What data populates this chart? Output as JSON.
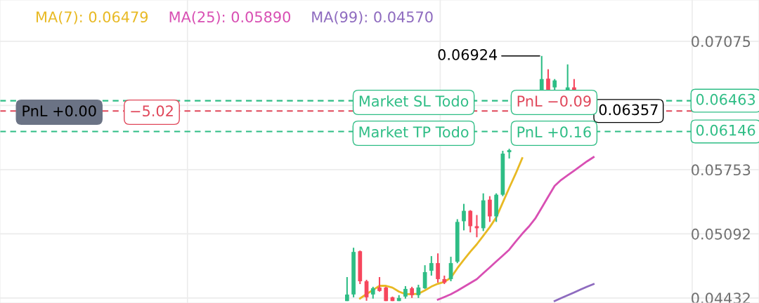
{
  "chart_data": {
    "type": "candlestick",
    "categories": [
      null,
      null,
      null,
      null,
      null,
      null,
      null,
      null,
      null,
      null,
      null,
      null,
      null,
      null,
      null,
      null,
      null,
      null,
      null,
      null,
      null,
      null,
      null,
      null,
      null,
      null,
      null,
      null,
      null,
      null,
      null,
      null,
      null,
      null,
      null,
      null,
      null,
      null,
      null,
      null,
      null,
      null,
      null,
      null,
      null,
      null,
      null,
      null,
      null,
      null,
      null,
      null,
      null,
      null,
      null,
      null,
      null,
      null,
      null,
      null,
      null,
      null,
      null,
      null,
      null,
      null,
      null,
      null,
      null,
      null,
      null,
      null,
      null,
      null,
      null,
      null,
      null,
      null,
      null,
      null,
      null,
      null,
      null,
      null,
      null,
      null,
      null,
      null,
      null,
      null,
      null,
      null,
      null,
      null,
      null,
      null,
      null,
      null,
      null,
      null,
      null,
      null,
      null,
      null,
      null,
      null,
      null,
      null,
      null,
      null,
      null,
      null,
      null,
      null,
      null,
      null,
      null
    ],
    "ohlc": [
      null,
      null,
      null,
      null,
      null,
      null,
      null,
      null,
      null,
      null,
      null,
      null,
      null,
      null,
      null,
      null,
      null,
      null,
      null,
      null,
      null,
      null,
      null,
      null,
      null,
      null,
      null,
      null,
      null,
      null,
      null,
      null,
      null,
      null,
      null,
      null,
      null,
      null,
      null,
      null,
      null,
      null,
      null,
      null,
      null,
      null,
      null,
      null,
      null,
      null,
      null,
      null,
      null,
      [
        0.044,
        0.04647,
        0.044,
        0.04467
      ],
      [
        0.04468,
        0.04949,
        0.04439,
        0.04906
      ],
      [
        0.04913,
        0.0492,
        0.04575,
        0.04604
      ],
      [
        0.04604,
        0.04619,
        0.04403,
        0.04439
      ],
      [
        0.04468,
        0.04547,
        0.04425,
        0.04532
      ],
      [
        0.0454,
        0.04647,
        0.04497,
        0.04504
      ],
      [
        0.0454,
        0.04547,
        0.044,
        0.044
      ],
      [
        0.04439,
        0.04446,
        0.044,
        0.044
      ],
      [
        0.044,
        0.04461,
        0.044,
        0.04432
      ],
      [
        0.04446,
        0.04554,
        0.04425,
        0.04525
      ],
      [
        0.04532,
        0.04547,
        0.04432,
        0.04461
      ],
      [
        0.04461,
        0.04568,
        0.04432,
        0.0454
      ],
      [
        0.04532,
        0.04769,
        0.04525,
        0.04698
      ],
      [
        0.04712,
        0.04863,
        0.04662,
        0.04791
      ],
      [
        0.04791,
        0.04891,
        0.0459,
        0.04626
      ],
      [
        0.04626,
        0.04662,
        0.04575,
        0.0459
      ],
      [
        0.04626,
        0.04856,
        0.04604,
        0.04791
      ],
      [
        0.04805,
        0.05243,
        0.0479,
        0.05215
      ],
      [
        0.05222,
        0.05401,
        0.05128,
        0.05329
      ],
      [
        0.05329,
        0.05336,
        0.05107,
        0.05171
      ],
      [
        0.05171,
        0.05286,
        0.05057,
        0.0515
      ],
      [
        0.0515,
        0.05509,
        0.05121,
        0.05437
      ],
      [
        0.05444,
        0.0548,
        0.05215,
        0.05272
      ],
      [
        0.05272,
        0.05509,
        0.05215,
        0.05495
      ],
      [
        0.05495,
        0.05947,
        0.0548,
        0.05918
      ],
      [
        0.05933,
        0.05968,
        0.05868,
        0.05954
      ],
      null,
      null,
      null,
      null,
      [
        0.0657,
        0.06924,
        0.0657,
        0.06686
      ],
      [
        0.0669,
        0.06787,
        0.0657,
        0.0657
      ],
      [
        0.066,
        0.06686,
        0.0657,
        0.06672
      ],
      null,
      [
        0.0657,
        0.06837,
        0.0657,
        0.066
      ],
      [
        0.066,
        0.06686,
        0.0657,
        0.0657
      ],
      null,
      null,
      null,
      null,
      null,
      null,
      null,
      null,
      null,
      null,
      null,
      null,
      null,
      null,
      null,
      null,
      null,
      null,
      null,
      null,
      null,
      null,
      null,
      null,
      null,
      null,
      null,
      null
    ],
    "colors": [
      null,
      null,
      null,
      null,
      null,
      null,
      null,
      null,
      null,
      null,
      null,
      null,
      null,
      null,
      null,
      null,
      null,
      null,
      null,
      null,
      null,
      null,
      null,
      null,
      null,
      null,
      null,
      null,
      null,
      null,
      null,
      null,
      null,
      null,
      null,
      null,
      null,
      null,
      null,
      null,
      null,
      null,
      null,
      null,
      null,
      null,
      null,
      null,
      null,
      null,
      null,
      null,
      null,
      "#2ebd85",
      "#2ebd85",
      "#f6465d",
      "#f6465d",
      "#2ebd85",
      "#f6465d",
      "#f6465d",
      "#f6465d",
      "#2ebd85",
      "#2ebd85",
      "#f6465d",
      "#2ebd85",
      "#2ebd85",
      "#2ebd85",
      "#f6465d",
      "#f6465d",
      "#2ebd85",
      "#2ebd85",
      "#2ebd85",
      "#f6465d",
      "#f6465d",
      "#2ebd85",
      "#f6465d",
      "#2ebd85",
      "#2ebd85",
      "#2ebd85",
      null,
      null,
      null,
      null,
      "#2ebd85",
      "#f6465d",
      "#2ebd85",
      null,
      "#2ebd85",
      "#f6465d",
      null,
      null,
      null,
      null,
      null,
      null,
      null,
      null,
      null,
      null,
      null,
      null,
      null,
      null,
      null,
      null,
      null,
      null,
      null,
      null,
      null,
      null,
      null,
      null,
      null,
      null,
      null,
      null
    ],
    "series": [
      {
        "name": "MA(7): 0.06479",
        "type": "line",
        "color": "#e8b923",
        "values": [
          null,
          null,
          null,
          null,
          null,
          null,
          null,
          null,
          null,
          null,
          null,
          null,
          null,
          null,
          null,
          null,
          null,
          null,
          null,
          null,
          null,
          null,
          null,
          null,
          null,
          null,
          null,
          null,
          null,
          null,
          null,
          null,
          null,
          null,
          null,
          null,
          null,
          null,
          null,
          null,
          null,
          null,
          null,
          null,
          null,
          null,
          null,
          null,
          null,
          null,
          null,
          null,
          null,
          null,
          null,
          0.04427,
          0.04472,
          0.04515,
          0.04557,
          0.04557,
          0.04538,
          0.04497,
          0.04471,
          0.04471,
          0.04475,
          0.0451,
          0.04549,
          0.04578,
          0.04598,
          0.0464,
          0.04738,
          0.04825,
          0.04908,
          0.04985,
          0.05073,
          0.05161,
          0.05262,
          0.05414,
          0.05566,
          0.05713,
          0.05871,
          null,
          null,
          null,
          null,
          null,
          null,
          null,
          null,
          null,
          null,
          null,
          null,
          null,
          null,
          null,
          null,
          null,
          null,
          null,
          null,
          null,
          null,
          null,
          null,
          null,
          null,
          null,
          null,
          null,
          null,
          null,
          null,
          null,
          null,
          null,
          null
        ]
      },
      {
        "name": "MA(25): 0.05890",
        "type": "line",
        "color": "#d84fb3",
        "values": [
          null,
          null,
          null,
          null,
          null,
          null,
          null,
          null,
          null,
          null,
          null,
          null,
          null,
          null,
          null,
          null,
          null,
          null,
          null,
          null,
          null,
          null,
          null,
          null,
          null,
          null,
          null,
          null,
          null,
          null,
          null,
          null,
          null,
          null,
          null,
          null,
          null,
          null,
          null,
          null,
          null,
          null,
          null,
          null,
          null,
          null,
          null,
          null,
          null,
          null,
          null,
          null,
          null,
          null,
          null,
          null,
          null,
          null,
          null,
          null,
          null,
          null,
          null,
          null,
          null,
          null,
          null,
          0.04414,
          0.04442,
          0.04471,
          0.04506,
          0.04546,
          0.04586,
          0.04626,
          0.04687,
          0.04747,
          0.04808,
          0.04868,
          0.04929,
          0.05013,
          0.05093,
          0.05165,
          0.05249,
          0.05361,
          0.05474,
          0.05586,
          0.05647,
          0.05695,
          0.05743,
          0.05791,
          0.05839,
          0.05882,
          null,
          null,
          null,
          null,
          null,
          null,
          null,
          null,
          null,
          null,
          null,
          null,
          null,
          null,
          null,
          null,
          null,
          null,
          null,
          null,
          null,
          null,
          null,
          null,
          null
        ]
      },
      {
        "name": "MA(99): 0.04570",
        "type": "line",
        "color": "#8e6bbf",
        "values": [
          null,
          null,
          null,
          null,
          null,
          null,
          null,
          null,
          null,
          null,
          null,
          null,
          null,
          null,
          null,
          null,
          null,
          null,
          null,
          null,
          null,
          null,
          null,
          null,
          null,
          null,
          null,
          null,
          null,
          null,
          null,
          null,
          null,
          null,
          null,
          null,
          null,
          null,
          null,
          null,
          null,
          null,
          null,
          null,
          null,
          null,
          null,
          null,
          null,
          null,
          null,
          null,
          null,
          null,
          null,
          null,
          null,
          null,
          null,
          null,
          null,
          null,
          null,
          null,
          null,
          null,
          null,
          null,
          null,
          null,
          null,
          null,
          null,
          null,
          null,
          null,
          null,
          null,
          null,
          null,
          null,
          null,
          null,
          null,
          null,
          0.044,
          0.0443,
          0.04459,
          0.04489,
          0.04519,
          0.04548,
          0.04575,
          null,
          null,
          null,
          null,
          null,
          null,
          null,
          null,
          null,
          null,
          null,
          null,
          null,
          null,
          null,
          null,
          null,
          null,
          null,
          null,
          null,
          null,
          null,
          null,
          null
        ]
      }
    ],
    "ylim": [
      0.0438,
      0.075
    ],
    "yticks": [
      {
        "value": 0.04432,
        "label": "0.04432"
      },
      {
        "value": 0.05092,
        "label": "0.05092"
      },
      {
        "value": 0.05753,
        "label": "0.05753"
      },
      {
        "value": 0.06414,
        "label": null
      },
      {
        "value": 0.07075,
        "label": "0.07075"
      }
    ],
    "tick_labels": "y",
    "grid": true,
    "ref_lines": [
      {
        "axis": "y",
        "value": 0.06463,
        "label": "0.06463",
        "color": "#2ebd85",
        "line_style": "dashed"
      },
      {
        "axis": "y",
        "value": 0.06357,
        "label": "0.06357",
        "color": "#e0475a",
        "line_style": "dashed"
      },
      {
        "axis": "y",
        "value": 0.06146,
        "label": "0.06146",
        "color": "#2ebd85",
        "line_style": "dashed"
      }
    ],
    "annotations": [
      "PnL +0.00",
      "−5.02",
      "Market SL Todo",
      "PnL −0.09",
      "Market TP Todo",
      "PnL +0.16",
      "0.06924"
    ]
  }
}
